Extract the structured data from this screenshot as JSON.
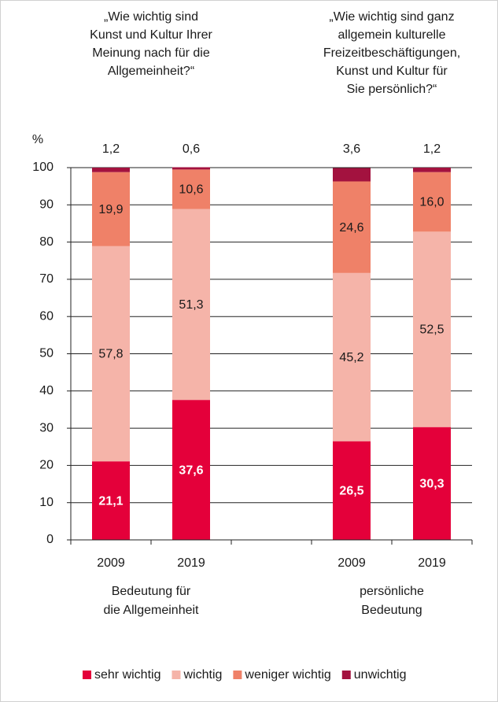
{
  "chart_data": {
    "type": "stacked_bar",
    "y_label": "%",
    "categories": [
      "2009",
      "2019",
      null,
      "2009",
      "2019"
    ],
    "groups": [
      {
        "question": [
          "„Wie wichtig sind",
          "Kunst und Kultur Ihrer",
          "Meinung nach für die",
          "Allgemeinheit?“"
        ],
        "label": [
          "Bedeutung für",
          "die Allgemeinheit"
        ]
      },
      {
        "question": [
          "„Wie wichtig sind ganz",
          "allgemein kulturelle",
          "Freizeitbeschäftigungen,",
          "Kunst und Kultur für",
          "Sie persönlich?“"
        ],
        "label": [
          "persönliche",
          "Bedeutung"
        ]
      }
    ],
    "series": [
      {
        "name": "sehr wichtig",
        "color": "#e4003a",
        "values": [
          21.1,
          37.6,
          null,
          26.5,
          30.3
        ],
        "value_labels": [
          "21,1",
          "37,6",
          null,
          "26,5",
          "30,3"
        ]
      },
      {
        "name": "wichtig",
        "color": "#f5b4a9",
        "values": [
          57.8,
          51.3,
          null,
          45.2,
          52.5
        ],
        "value_labels": [
          "57,8",
          "51,3",
          null,
          "45,2",
          "52,5"
        ]
      },
      {
        "name": "weniger wichtig",
        "color": "#ef8168",
        "values": [
          19.9,
          10.6,
          null,
          24.6,
          16.0
        ],
        "value_labels": [
          "19,9",
          "10,6",
          null,
          "24,6",
          "16,0"
        ]
      },
      {
        "name": "unwichtig",
        "color": "#a3123f",
        "values": [
          1.2,
          0.6,
          null,
          3.6,
          1.2
        ],
        "value_labels": [
          "1,2",
          "0,6",
          null,
          "3,6",
          "1,2"
        ]
      }
    ],
    "ylim": [
      0,
      100
    ],
    "yticks": [
      0,
      10,
      20,
      30,
      40,
      50,
      60,
      70,
      80,
      90,
      100
    ],
    "grid": true,
    "legend": "bottom"
  }
}
